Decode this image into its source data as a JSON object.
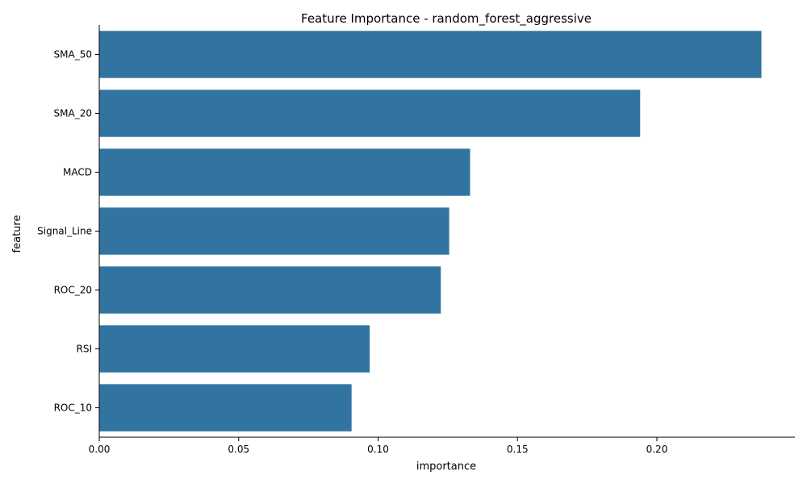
{
  "chart_data": {
    "type": "bar",
    "orientation": "horizontal",
    "title": "Feature Importance - random_forest_aggressive",
    "xlabel": "importance",
    "ylabel": "feature",
    "categories": [
      "SMA_50",
      "SMA_20",
      "MACD",
      "Signal_Line",
      "ROC_20",
      "RSI",
      "ROC_10"
    ],
    "values": [
      0.2375,
      0.194,
      0.133,
      0.1255,
      0.1225,
      0.097,
      0.0905
    ],
    "xlim": [
      0,
      0.2495
    ],
    "xticks": [
      0.0,
      0.05,
      0.1,
      0.15,
      0.2
    ],
    "xtick_labels": [
      "0.00",
      "0.05",
      "0.10",
      "0.15",
      "0.20"
    ],
    "grid": false,
    "color": "#3274a1"
  }
}
